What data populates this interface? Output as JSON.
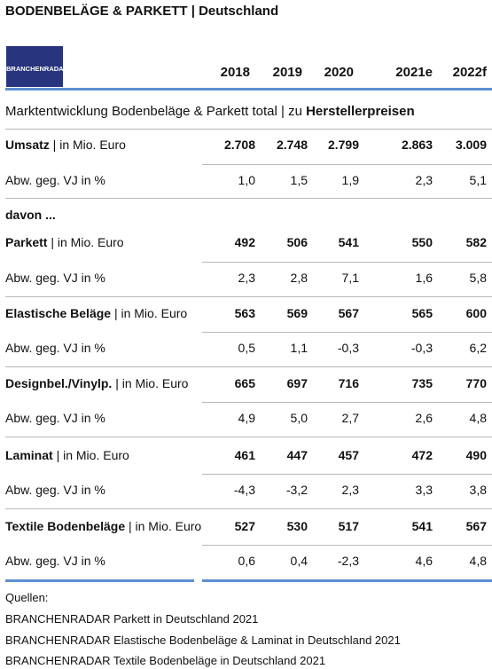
{
  "title": "BODENBELÄGE & PARKETT | Deutschland",
  "logo_text": "BRANCHENRADAR",
  "years": [
    "2018",
    "2019",
    "2020",
    "2021e",
    "2022f"
  ],
  "subtitle_prefix": "Marktentwicklung Bodenbeläge & Parkett total | zu ",
  "subtitle_bold": "Herstellerpreisen",
  "unit_label": " | in Mio. Euro",
  "change_label": "Abw. geg. VJ in %",
  "davon_label": "davon ...",
  "rows": [
    {
      "name": "Umsatz",
      "values": [
        "2.708",
        "2.748",
        "2.799",
        "2.863",
        "3.009"
      ],
      "changes": [
        "1,0",
        "1,5",
        "1,9",
        "2,3",
        "5,1"
      ]
    },
    {
      "name": "Parkett",
      "values": [
        "492",
        "506",
        "541",
        "550",
        "582"
      ],
      "changes": [
        "2,3",
        "2,8",
        "7,1",
        "1,6",
        "5,8"
      ]
    },
    {
      "name": "Elastische Beläge",
      "values": [
        "563",
        "569",
        "567",
        "565",
        "600"
      ],
      "changes": [
        "0,5",
        "1,1",
        "-0,3",
        "-0,3",
        "6,2"
      ]
    },
    {
      "name": "Designbel./Vinylp.",
      "values": [
        "665",
        "697",
        "716",
        "735",
        "770"
      ],
      "changes": [
        "4,9",
        "5,0",
        "2,7",
        "2,6",
        "4,8"
      ]
    },
    {
      "name": "Laminat",
      "values": [
        "461",
        "447",
        "457",
        "472",
        "490"
      ],
      "changes": [
        "-4,3",
        "-3,2",
        "2,3",
        "3,3",
        "3,8"
      ]
    },
    {
      "name": "Textile Bodenbeläge",
      "values": [
        "527",
        "530",
        "517",
        "541",
        "567"
      ],
      "changes": [
        "0,6",
        "0,4",
        "-2,3",
        "4,6",
        "4,8"
      ]
    }
  ],
  "sources_label": "Quellen:",
  "sources": [
    "BRANCHENRADAR Parkett in Deutschland 2021",
    "BRANCHENRADAR Elastische Bodenbeläge & Laminat in Deutschland 2021",
    "BRANCHENRADAR Textile Bodenbeläge in Deutschland 2021"
  ]
}
